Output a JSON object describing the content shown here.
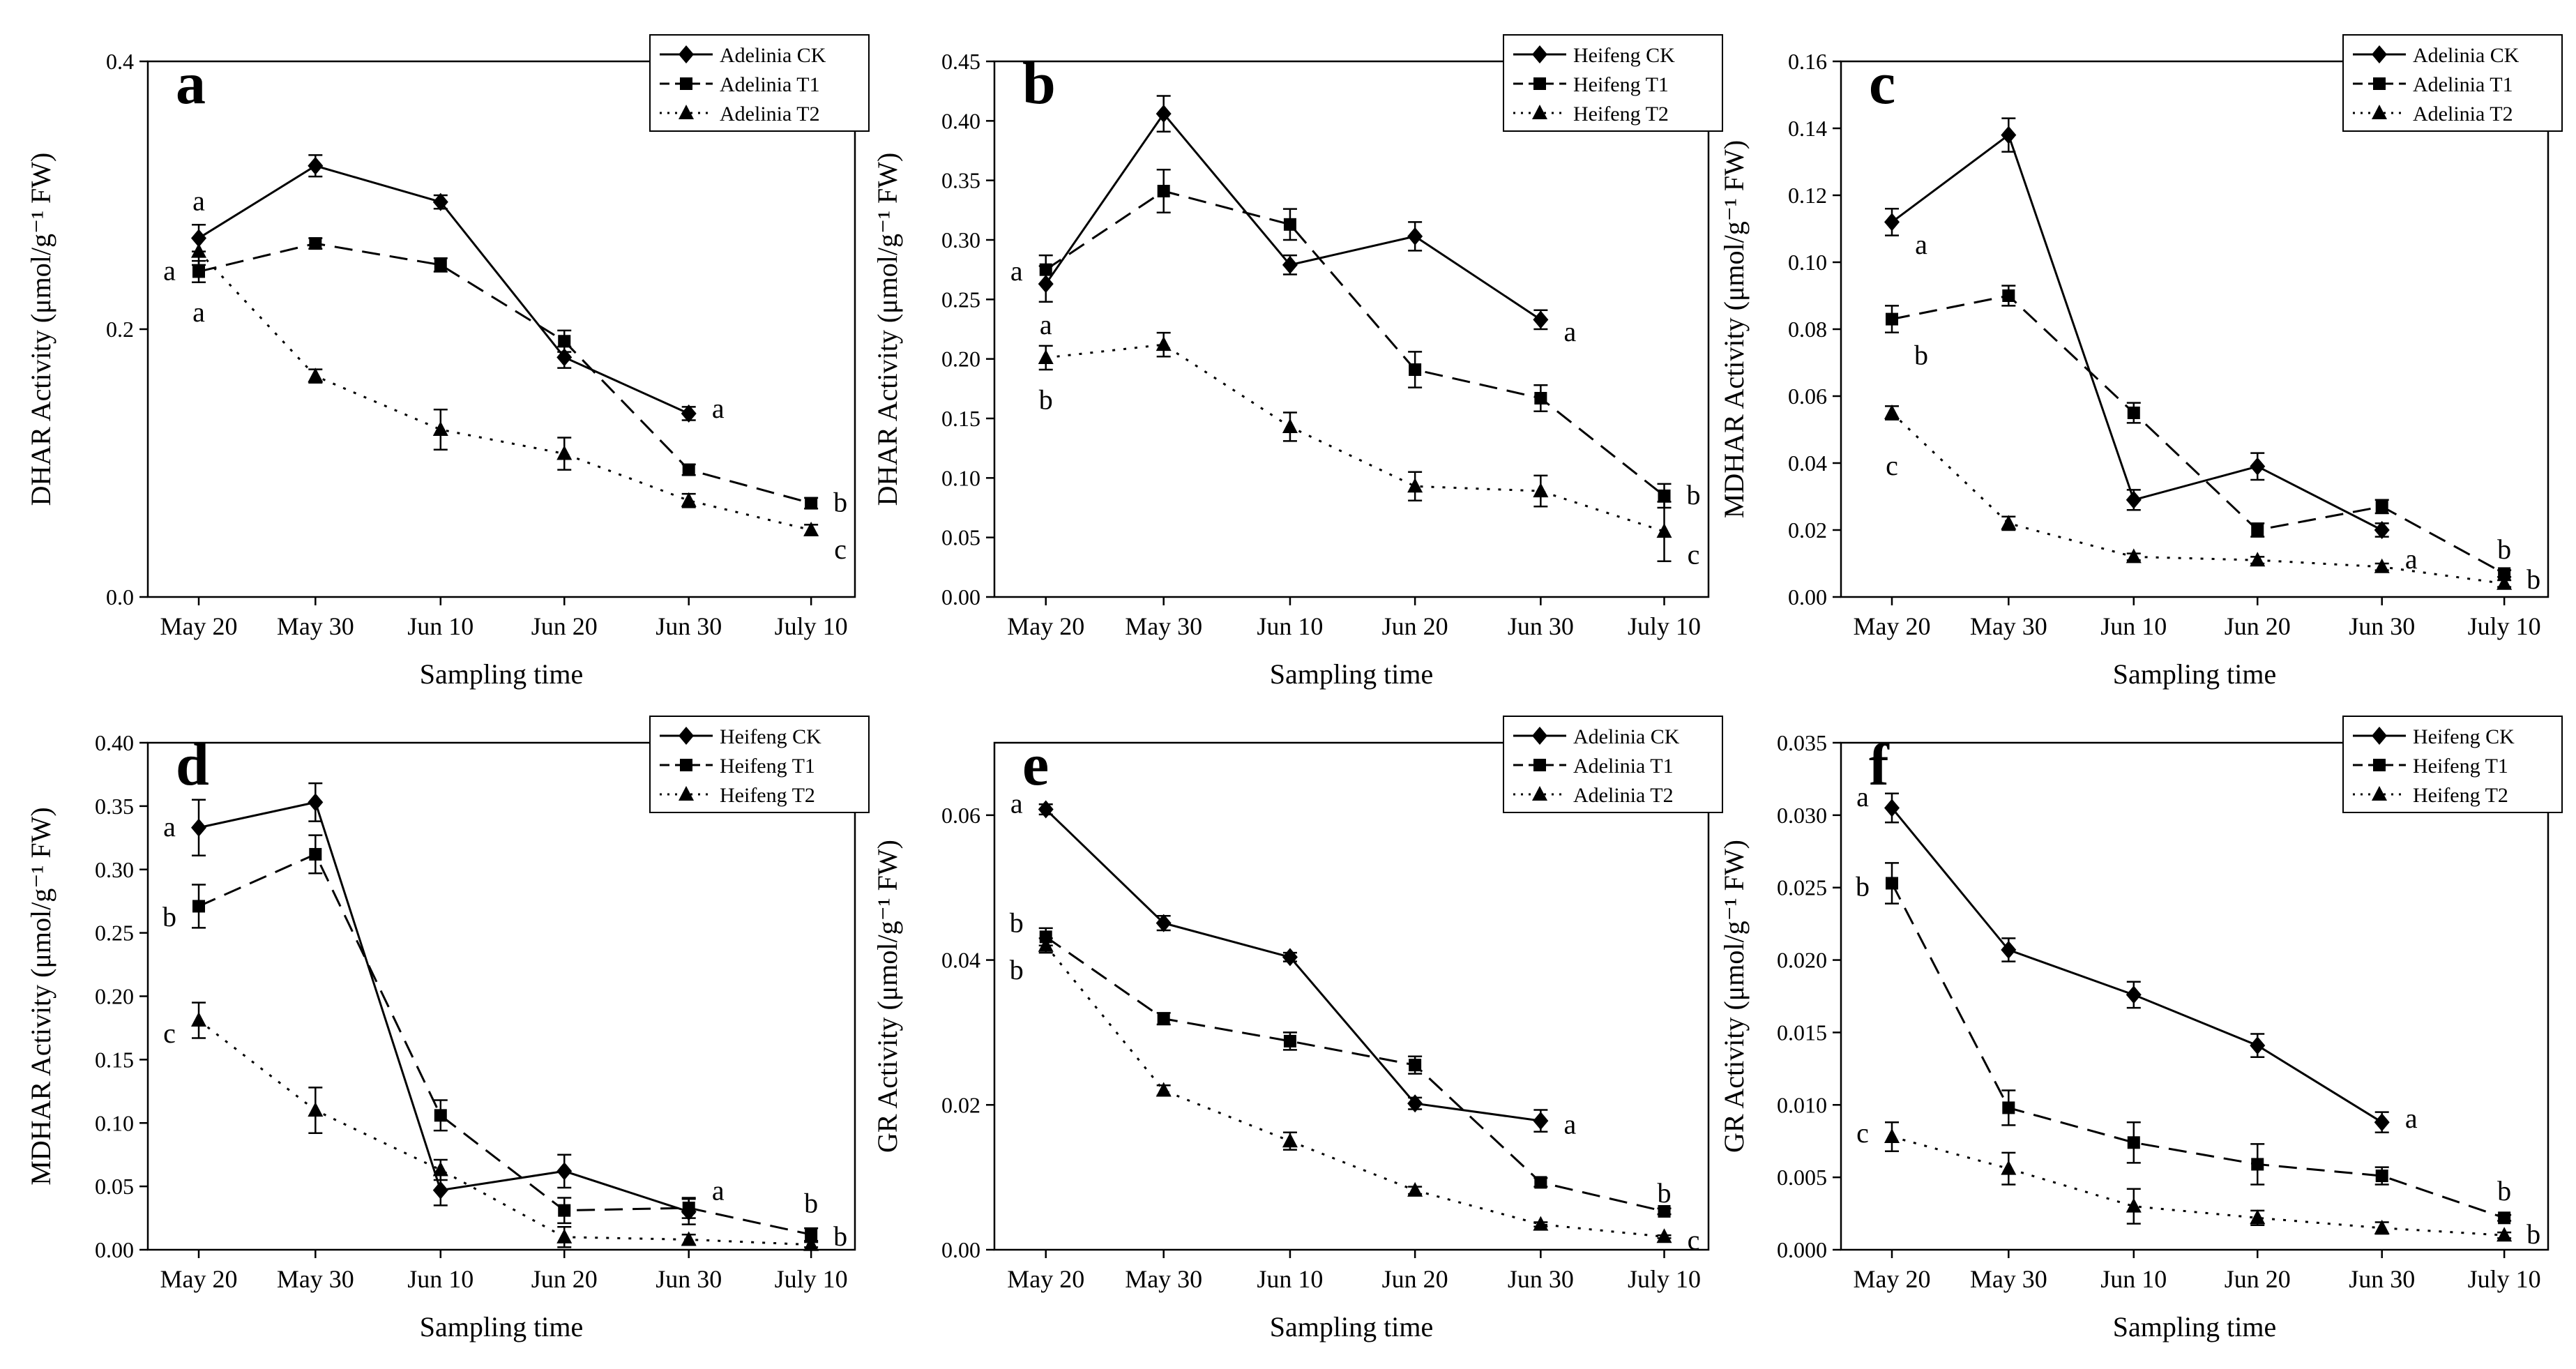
{
  "chart_data": [
    {
      "panel": "a",
      "type": "line",
      "title": "a",
      "xlabel": "Sampling time",
      "ylabel": "DHAR Activity (μmol/g⁻¹ FW)",
      "ylim": [
        0,
        0.4
      ],
      "yticks": [
        0.0,
        0.2,
        0.4
      ],
      "ytick_labels": [
        "0.0",
        "0.2",
        "0.4"
      ],
      "categories": [
        "May 20",
        "May 30",
        "Jun 10",
        "Jun 20",
        "Jun 30",
        "July 10"
      ],
      "legend": "top-right",
      "series": [
        {
          "name": "Adelinia CK",
          "marker": "diamond",
          "style": "solid",
          "values": [
            0.268,
            0.322,
            0.295,
            0.179,
            0.137,
            null
          ],
          "errors": [
            0.01,
            0.008,
            0.005,
            0.008,
            0.005,
            null
          ]
        },
        {
          "name": "Adelinia T1",
          "marker": "square",
          "style": "dashed",
          "values": [
            0.243,
            0.264,
            0.248,
            0.191,
            0.095,
            0.07
          ],
          "errors": [
            0.008,
            0.004,
            0.005,
            0.008,
            0.004,
            0.004
          ]
        },
        {
          "name": "Adelinia T2",
          "marker": "triangle",
          "style": "dotted",
          "values": [
            0.258,
            0.165,
            0.125,
            0.107,
            0.072,
            0.05
          ],
          "errors": [
            0.01,
            0.005,
            0.015,
            0.012,
            0.005,
            0.004
          ]
        }
      ],
      "annotations": [
        {
          "text": "a",
          "x": "May 20",
          "y": 0.295,
          "align": "center"
        },
        {
          "text": "a",
          "x": "May 20",
          "y": 0.243,
          "align": "left"
        },
        {
          "text": "a",
          "x": "May 20",
          "y": 0.212,
          "align": "center"
        },
        {
          "text": "a",
          "x": "Jun 30",
          "y": 0.14,
          "align": "right"
        },
        {
          "text": "b",
          "x": "July 10",
          "y": 0.07,
          "align": "right"
        },
        {
          "text": "c",
          "x": "July 10",
          "y": 0.035,
          "align": "right"
        }
      ]
    },
    {
      "panel": "b",
      "type": "line",
      "title": "b",
      "xlabel": "Sampling time",
      "ylabel": "DHAR Activity (μmol/g⁻¹ FW)",
      "ylim": [
        0,
        0.45
      ],
      "yticks": [
        0.0,
        0.05,
        0.1,
        0.15,
        0.2,
        0.25,
        0.3,
        0.35,
        0.4,
        0.45
      ],
      "ytick_labels": [
        "0.00",
        "0.05",
        "0.10",
        "0.15",
        "0.20",
        "0.25",
        "0.30",
        "0.35",
        "0.40",
        "0.45"
      ],
      "categories": [
        "May 20",
        "May 30",
        "Jun 10",
        "Jun 20",
        "Jun 30",
        "July 10"
      ],
      "legend": "top-right",
      "series": [
        {
          "name": "Heifeng CK",
          "marker": "diamond",
          "style": "solid",
          "values": [
            0.263,
            0.406,
            0.279,
            0.303,
            0.233,
            null
          ],
          "errors": [
            0.015,
            0.015,
            0.008,
            0.012,
            0.008,
            null
          ]
        },
        {
          "name": "Heifeng T1",
          "marker": "square",
          "style": "dashed",
          "values": [
            0.275,
            0.341,
            0.313,
            0.191,
            0.167,
            0.085
          ],
          "errors": [
            0.012,
            0.018,
            0.013,
            0.015,
            0.011,
            0.01
          ]
        },
        {
          "name": "Heifeng T2",
          "marker": "triangle",
          "style": "dotted",
          "values": [
            0.201,
            0.212,
            0.143,
            0.093,
            0.089,
            0.055
          ],
          "errors": [
            0.01,
            0.01,
            0.012,
            0.012,
            0.013,
            0.025
          ]
        }
      ],
      "annotations": [
        {
          "text": "a",
          "x": "May 20",
          "y": 0.273,
          "align": "left"
        },
        {
          "text": "a",
          "x": "May 20",
          "y": 0.228,
          "align": "center"
        },
        {
          "text": "b",
          "x": "May 20",
          "y": 0.165,
          "align": "center"
        },
        {
          "text": "a",
          "x": "Jun 30",
          "y": 0.222,
          "align": "right"
        },
        {
          "text": "b",
          "x": "July 10",
          "y": 0.085,
          "align": "right"
        },
        {
          "text": "c",
          "x": "July 10",
          "y": 0.035,
          "align": "right"
        }
      ]
    },
    {
      "panel": "c",
      "type": "line",
      "title": "c",
      "xlabel": "Sampling time",
      "ylabel": "MDHAR Activity (μmol/g⁻¹ FW)",
      "ylim": [
        0,
        0.16
      ],
      "yticks": [
        0.0,
        0.02,
        0.04,
        0.06,
        0.08,
        0.1,
        0.12,
        0.14,
        0.16
      ],
      "ytick_labels": [
        "0.00",
        "0.02",
        "0.04",
        "0.06",
        "0.08",
        "0.10",
        "0.12",
        "0.14",
        "0.16"
      ],
      "categories": [
        "May 20",
        "May 30",
        "Jun 10",
        "Jun 20",
        "Jun 30",
        "July 10"
      ],
      "legend": "top-right",
      "series": [
        {
          "name": "Adelinia CK",
          "marker": "diamond",
          "style": "solid",
          "values": [
            0.112,
            0.138,
            0.029,
            0.039,
            0.02,
            null
          ],
          "errors": [
            0.004,
            0.005,
            0.003,
            0.004,
            0.002,
            null
          ]
        },
        {
          "name": "Adelinia T1",
          "marker": "square",
          "style": "dashed",
          "values": [
            0.083,
            0.09,
            0.055,
            0.02,
            0.027,
            0.007
          ],
          "errors": [
            0.004,
            0.003,
            0.003,
            0.002,
            0.002,
            0.001
          ]
        },
        {
          "name": "Adelinia T2",
          "marker": "triangle",
          "style": "dotted",
          "values": [
            0.055,
            0.022,
            0.012,
            0.011,
            0.009,
            0.004
          ],
          "errors": [
            0.002,
            0.002,
            0.001,
            0.001,
            0.001,
            0.001
          ]
        }
      ],
      "annotations": [
        {
          "text": "a",
          "x": "May 20",
          "y": 0.105,
          "align": "right"
        },
        {
          "text": "b",
          "x": "May 20",
          "y": 0.072,
          "align": "right"
        },
        {
          "text": "c",
          "x": "May 20",
          "y": 0.039,
          "align": "center"
        },
        {
          "text": "a",
          "x": "Jun 30",
          "y": 0.011,
          "align": "right"
        },
        {
          "text": "b",
          "x": "July 10",
          "y": 0.014,
          "align": "center"
        },
        {
          "text": "b",
          "x": "July 10",
          "y": 0.005,
          "align": "right"
        }
      ]
    },
    {
      "panel": "d",
      "type": "line",
      "title": "d",
      "xlabel": "Sampling time",
      "ylabel": "MDHAR Activity (μmol/g⁻¹ FW)",
      "ylim": [
        0,
        0.4
      ],
      "yticks": [
        0.0,
        0.05,
        0.1,
        0.15,
        0.2,
        0.25,
        0.3,
        0.35,
        0.4
      ],
      "ytick_labels": [
        "0.00",
        "0.05",
        "0.10",
        "0.15",
        "0.20",
        "0.25",
        "0.30",
        "0.35",
        "0.40"
      ],
      "categories": [
        "May 20",
        "May 30",
        "Jun 10",
        "Jun 20",
        "Jun 30",
        "July 10"
      ],
      "legend": "top-right",
      "series": [
        {
          "name": "Heifeng CK",
          "marker": "diamond",
          "style": "solid",
          "values": [
            0.333,
            0.353,
            0.047,
            0.062,
            0.03,
            null
          ],
          "errors": [
            0.022,
            0.015,
            0.012,
            0.013,
            0.01,
            null
          ]
        },
        {
          "name": "Heifeng T1",
          "marker": "square",
          "style": "dashed",
          "values": [
            0.271,
            0.312,
            0.106,
            0.031,
            0.033,
            0.012
          ],
          "errors": [
            0.017,
            0.015,
            0.012,
            0.01,
            0.008,
            0.005
          ]
        },
        {
          "name": "Heifeng T2",
          "marker": "triangle",
          "style": "dotted",
          "values": [
            0.181,
            0.11,
            0.063,
            0.01,
            0.008,
            0.004
          ],
          "errors": [
            0.014,
            0.018,
            0.008,
            0.008,
            0.004,
            0.002
          ]
        }
      ],
      "annotations": [
        {
          "text": "a",
          "x": "May 20",
          "y": 0.333,
          "align": "left"
        },
        {
          "text": "b",
          "x": "May 20",
          "y": 0.262,
          "align": "left"
        },
        {
          "text": "c",
          "x": "May 20",
          "y": 0.17,
          "align": "left"
        },
        {
          "text": "a",
          "x": "Jun 30",
          "y": 0.046,
          "align": "right"
        },
        {
          "text": "b",
          "x": "July 10",
          "y": 0.036,
          "align": "center"
        },
        {
          "text": "b",
          "x": "July 10",
          "y": 0.01,
          "align": "right"
        }
      ]
    },
    {
      "panel": "e",
      "type": "line",
      "title": "e",
      "xlabel": "Sampling time",
      "ylabel": "GR Activity (μmol/g⁻¹ FW)",
      "ylim": [
        0,
        0.07
      ],
      "yticks": [
        0.0,
        0.02,
        0.04,
        0.06
      ],
      "ytick_labels": [
        "0.00",
        "0.02",
        "0.04",
        "0.06"
      ],
      "categories": [
        "May 20",
        "May 30",
        "Jun 10",
        "Jun 20",
        "Jun 30",
        "July 10"
      ],
      "legend": "top-right",
      "series": [
        {
          "name": "Adelinia CK",
          "marker": "diamond",
          "style": "solid",
          "values": [
            0.0608,
            0.0451,
            0.0404,
            0.0202,
            0.0178,
            null
          ],
          "errors": [
            0.0007,
            0.001,
            0.0006,
            0.0008,
            0.0015,
            null
          ]
        },
        {
          "name": "Adelinia T1",
          "marker": "square",
          "style": "dashed",
          "values": [
            0.0432,
            0.0319,
            0.0288,
            0.0255,
            0.0093,
            0.0053
          ],
          "errors": [
            0.0012,
            0.0008,
            0.0012,
            0.0012,
            0.0006,
            0.0004
          ]
        },
        {
          "name": "Adelinia T2",
          "marker": "triangle",
          "style": "dotted",
          "values": [
            0.042,
            0.022,
            0.015,
            0.0082,
            0.0035,
            0.0018
          ],
          "errors": [
            0.001,
            0.0007,
            0.0012,
            0.0005,
            0.0003,
            0.0002
          ]
        }
      ],
      "annotations": [
        {
          "text": "a",
          "x": "May 20",
          "y": 0.0615,
          "align": "left"
        },
        {
          "text": "b",
          "x": "May 20",
          "y": 0.045,
          "align": "left"
        },
        {
          "text": "b",
          "x": "May 20",
          "y": 0.0385,
          "align": "left"
        },
        {
          "text": "a",
          "x": "Jun 30",
          "y": 0.0172,
          "align": "right"
        },
        {
          "text": "b",
          "x": "July 10",
          "y": 0.0077,
          "align": "center"
        },
        {
          "text": "c",
          "x": "July 10",
          "y": 0.0012,
          "align": "right"
        }
      ]
    },
    {
      "panel": "f",
      "type": "line",
      "title": "f",
      "xlabel": "Sampling time",
      "ylabel": "GR Activity (μmol/g⁻¹ FW)",
      "ylim": [
        0,
        0.035
      ],
      "yticks": [
        0.0,
        0.005,
        0.01,
        0.015,
        0.02,
        0.025,
        0.03,
        0.035
      ],
      "ytick_labels": [
        "0.000",
        "0.005",
        "0.010",
        "0.015",
        "0.020",
        "0.025",
        "0.030",
        "0.035"
      ],
      "categories": [
        "May 20",
        "May 30",
        "Jun 10",
        "Jun 20",
        "Jun 30",
        "July 10"
      ],
      "legend": "top-right",
      "series": [
        {
          "name": "Heifeng CK",
          "marker": "diamond",
          "style": "solid",
          "values": [
            0.0305,
            0.0207,
            0.0176,
            0.0141,
            0.0088,
            null
          ],
          "errors": [
            0.001,
            0.0008,
            0.0009,
            0.0008,
            0.0007,
            null
          ]
        },
        {
          "name": "Heifeng T1",
          "marker": "square",
          "style": "dashed",
          "values": [
            0.0253,
            0.0098,
            0.0074,
            0.0059,
            0.0051,
            0.0022
          ],
          "errors": [
            0.0014,
            0.0012,
            0.0014,
            0.0014,
            0.0006,
            0.0002
          ]
        },
        {
          "name": "Heifeng T2",
          "marker": "triangle",
          "style": "dotted",
          "values": [
            0.0078,
            0.0056,
            0.003,
            0.0022,
            0.0015,
            0.001
          ],
          "errors": [
            0.001,
            0.0011,
            0.0012,
            0.0005,
            0.0004,
            0.0002
          ]
        }
      ],
      "annotations": [
        {
          "text": "a",
          "x": "May 20",
          "y": 0.0312,
          "align": "left"
        },
        {
          "text": "b",
          "x": "May 20",
          "y": 0.025,
          "align": "left"
        },
        {
          "text": "c",
          "x": "May 20",
          "y": 0.008,
          "align": "left"
        },
        {
          "text": "a",
          "x": "Jun 30",
          "y": 0.009,
          "align": "right"
        },
        {
          "text": "b",
          "x": "July 10",
          "y": 0.004,
          "align": "center"
        },
        {
          "text": "b",
          "x": "July 10",
          "y": 0.001,
          "align": "right"
        }
      ]
    }
  ]
}
